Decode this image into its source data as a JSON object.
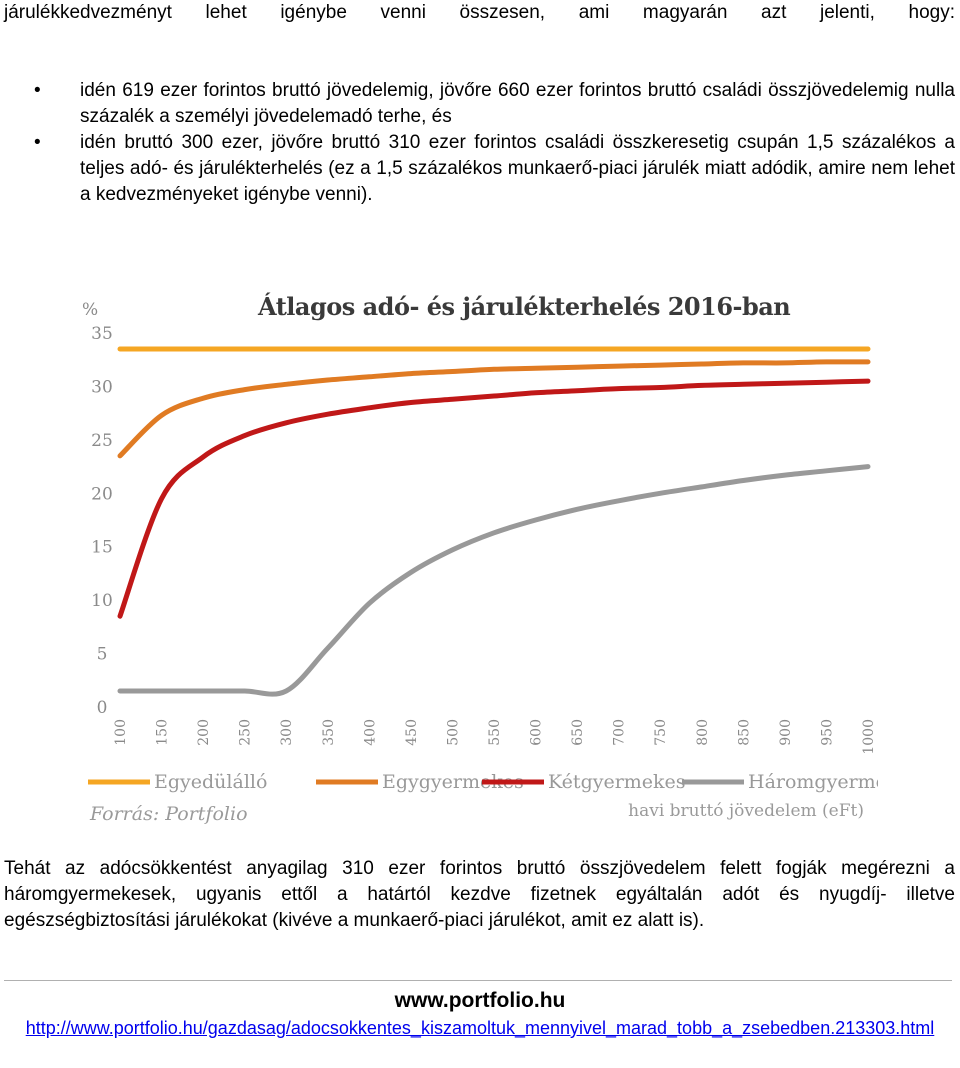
{
  "intro": "járulékkedvezményt lehet igénybe venni összesen, ami magyarán azt jelenti, hogy:",
  "bullets": [
    "idén 619 ezer forintos bruttó jövedelemig, jövőre 660 ezer forintos bruttó családi összjövedelemig nulla százalék a személyi jövedelemadó terhe, és",
    "idén bruttó 300 ezer, jövőre bruttó 310 ezer forintos családi összkeresetig csupán 1,5 százalékos a teljes adó- és járulékterhelés (ez a 1,5 százalékos munkaerő-piaci járulék miatt adódik, amire nem lehet a kedvezményeket igénybe venni)."
  ],
  "bullet_symbol": "•",
  "chart_data": {
    "type": "line",
    "title": "Átlagos adó- és járulékterhelés 2016-ban",
    "ylabel": "%",
    "xlabel": "havi bruttó jövedelem (eFt)",
    "source": "Forrás: Portfolio",
    "ylim": [
      0,
      35
    ],
    "xlim": [
      100,
      1000
    ],
    "yticks": [
      "0",
      "5",
      "10",
      "15",
      "20",
      "25",
      "30",
      "35"
    ],
    "xticks": [
      "100",
      "150",
      "200",
      "250",
      "300",
      "350",
      "400",
      "450",
      "500",
      "550",
      "600",
      "650",
      "700",
      "750",
      "800",
      "850",
      "900",
      "950",
      "1000"
    ],
    "grid": false,
    "legend_position": "bottom",
    "x": [
      100,
      150,
      200,
      250,
      300,
      350,
      400,
      450,
      500,
      550,
      600,
      650,
      700,
      750,
      800,
      850,
      900,
      950,
      1000
    ],
    "series": [
      {
        "name": "Egyedülálló",
        "color": "#f5a623",
        "values": [
          33.5,
          33.5,
          33.5,
          33.5,
          33.5,
          33.5,
          33.5,
          33.5,
          33.5,
          33.5,
          33.5,
          33.5,
          33.5,
          33.5,
          33.5,
          33.5,
          33.5,
          33.5,
          33.5
        ]
      },
      {
        "name": "Egygyermekes",
        "color": "#e07b23",
        "values": [
          23.5,
          27.3,
          28.9,
          29.7,
          30.2,
          30.6,
          30.9,
          31.2,
          31.4,
          31.6,
          31.7,
          31.8,
          31.9,
          32.0,
          32.1,
          32.2,
          32.2,
          32.3,
          32.3
        ]
      },
      {
        "name": "Kétgyermekes",
        "color": "#c01818",
        "values": [
          8.5,
          19.5,
          23.4,
          25.4,
          26.6,
          27.4,
          28.0,
          28.5,
          28.8,
          29.1,
          29.4,
          29.6,
          29.8,
          29.9,
          30.1,
          30.2,
          30.3,
          30.4,
          30.5
        ]
      },
      {
        "name": "Háromgyermekes",
        "color": "#999999",
        "values": [
          1.5,
          1.5,
          1.5,
          1.5,
          1.5,
          5.5,
          9.7,
          12.6,
          14.7,
          16.3,
          17.5,
          18.5,
          19.3,
          20.0,
          20.6,
          21.2,
          21.7,
          22.1,
          22.5
        ]
      }
    ]
  },
  "outro": "Tehát az adócsökkentést anyagilag 310 ezer forintos bruttó összjövedelem felett fogják megérezni a háromgyermekesek, ugyanis ettől a határtól kezdve fizetnek egyáltalán adót és nyugdíj- illetve egészségbiztosítási járulékokat (kivéve a munkaerő-piaci járulékot, amit ez alatt is).",
  "footer": {
    "site": "www.portfolio.hu",
    "url": "http://www.portfolio.hu/gazdasag/adocsokkentes_kiszamoltuk_mennyivel_marad_tobb_a_zsebedben.213303.html"
  }
}
